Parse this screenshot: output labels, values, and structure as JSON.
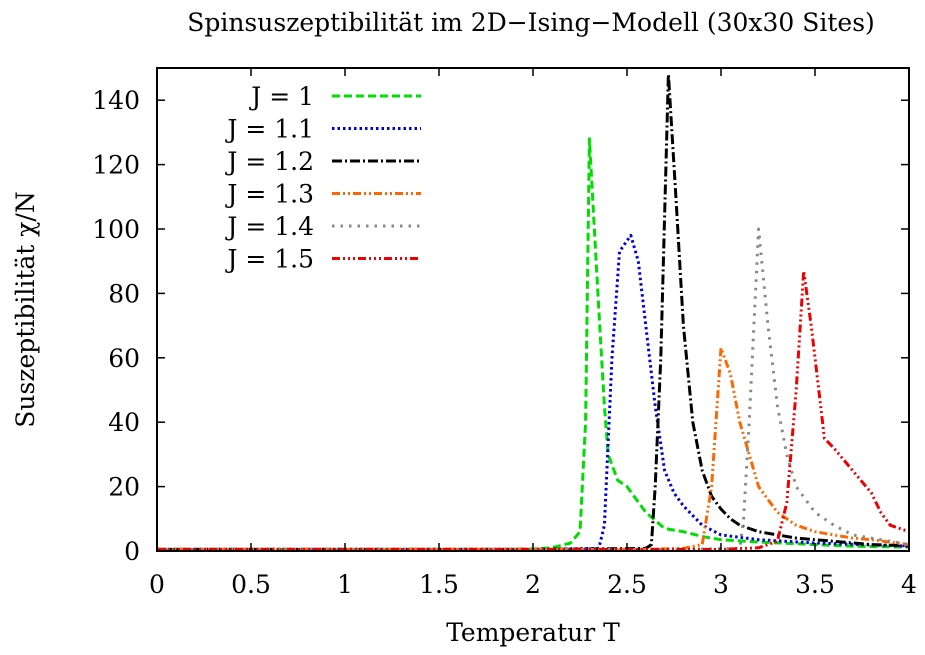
{
  "chart_data": {
    "type": "line",
    "title": "Spinsuszeptibilität im 2D−Ising−Modell (30x30 Sites)",
    "xlabel": "Temperatur T",
    "ylabel": "Suszeptibilität χ/N",
    "xlim": [
      0,
      4
    ],
    "ylim": [
      0,
      150
    ],
    "xticks": [
      "0",
      "0.5",
      "1",
      "1.5",
      "2",
      "2.5",
      "3",
      "3.5",
      "4"
    ],
    "yticks": [
      "0",
      "20",
      "40",
      "60",
      "80",
      "100",
      "120",
      "140"
    ],
    "grid": false,
    "legend_position": "top-left",
    "series": [
      {
        "name": "J = 1",
        "color": "#00dd00",
        "dash": "short-dash",
        "points": [
          [
            0,
            0.5
          ],
          [
            1,
            0.5
          ],
          [
            1.8,
            0.5
          ],
          [
            2,
            0.6
          ],
          [
            2.1,
            1
          ],
          [
            2.2,
            2.5
          ],
          [
            2.25,
            6
          ],
          [
            2.28,
            40
          ],
          [
            2.3,
            128
          ],
          [
            2.35,
            75
          ],
          [
            2.38,
            45
          ],
          [
            2.4,
            30
          ],
          [
            2.45,
            22
          ],
          [
            2.5,
            20
          ],
          [
            2.6,
            12
          ],
          [
            2.7,
            7
          ],
          [
            2.8,
            6
          ],
          [
            2.9,
            4.5
          ],
          [
            3,
            3.5
          ],
          [
            3.2,
            2.8
          ],
          [
            3.5,
            2
          ],
          [
            3.7,
            1.5
          ],
          [
            4,
            1.2
          ]
        ]
      },
      {
        "name": "J = 1.1",
        "color": "#0000dd",
        "dash": "dotted",
        "points": [
          [
            0,
            0.5
          ],
          [
            1,
            0.5
          ],
          [
            2,
            0.5
          ],
          [
            2.35,
            0.8
          ],
          [
            2.38,
            8
          ],
          [
            2.42,
            60
          ],
          [
            2.46,
            93
          ],
          [
            2.52,
            98
          ],
          [
            2.56,
            90
          ],
          [
            2.6,
            70
          ],
          [
            2.65,
            45
          ],
          [
            2.7,
            25
          ],
          [
            2.75,
            18
          ],
          [
            2.8,
            14
          ],
          [
            2.85,
            11
          ],
          [
            2.9,
            8
          ],
          [
            3,
            5
          ],
          [
            3.2,
            3.5
          ],
          [
            3.5,
            2.5
          ],
          [
            4,
            1.5
          ]
        ]
      },
      {
        "name": "J = 1.2",
        "color": "#000000",
        "dash": "dash-dot",
        "points": [
          [
            0,
            0.5
          ],
          [
            1,
            0.5
          ],
          [
            2,
            0.5
          ],
          [
            2.6,
            0.8
          ],
          [
            2.63,
            2
          ],
          [
            2.65,
            20
          ],
          [
            2.68,
            60
          ],
          [
            2.72,
            148
          ],
          [
            2.76,
            110
          ],
          [
            2.8,
            70
          ],
          [
            2.85,
            40
          ],
          [
            2.9,
            25
          ],
          [
            2.95,
            17
          ],
          [
            3,
            13
          ],
          [
            3.05,
            10
          ],
          [
            3.1,
            8
          ],
          [
            3.2,
            6
          ],
          [
            3.4,
            4
          ],
          [
            3.6,
            3
          ],
          [
            3.8,
            2
          ],
          [
            4,
            1.6
          ]
        ]
      },
      {
        "name": "J = 1.3",
        "color": "#ff6600",
        "dash": "dash-dot-dot",
        "points": [
          [
            0,
            0.5
          ],
          [
            1,
            0.5
          ],
          [
            2,
            0.5
          ],
          [
            2.6,
            0.5
          ],
          [
            2.8,
            0.8
          ],
          [
            2.9,
            2
          ],
          [
            2.95,
            20
          ],
          [
            3,
            63
          ],
          [
            3.05,
            55
          ],
          [
            3.1,
            40
          ],
          [
            3.15,
            30
          ],
          [
            3.2,
            20
          ],
          [
            3.3,
            12
          ],
          [
            3.4,
            8
          ],
          [
            3.5,
            6
          ],
          [
            3.6,
            5
          ],
          [
            3.7,
            4
          ],
          [
            3.8,
            3.5
          ],
          [
            4,
            2
          ]
        ]
      },
      {
        "name": "J = 1.4",
        "color": "#888888",
        "dash": "sparse-dot",
        "points": [
          [
            0,
            0.5
          ],
          [
            1,
            0.5
          ],
          [
            2,
            0.5
          ],
          [
            2.8,
            0.5
          ],
          [
            3.1,
            0.8
          ],
          [
            3.12,
            10
          ],
          [
            3.15,
            40
          ],
          [
            3.2,
            100
          ],
          [
            3.25,
            70
          ],
          [
            3.3,
            45
          ],
          [
            3.35,
            30
          ],
          [
            3.4,
            20
          ],
          [
            3.5,
            12
          ],
          [
            3.6,
            8
          ],
          [
            3.7,
            5
          ],
          [
            3.8,
            4
          ],
          [
            3.9,
            3
          ],
          [
            4,
            2
          ]
        ]
      },
      {
        "name": "J = 1.5",
        "color": "#ee0000",
        "dash": "dash-dot-dot-dot",
        "points": [
          [
            0,
            0.5
          ],
          [
            1,
            0.5
          ],
          [
            2,
            0.5
          ],
          [
            3,
            0.5
          ],
          [
            3.2,
            1
          ],
          [
            3.3,
            3
          ],
          [
            3.35,
            15
          ],
          [
            3.4,
            50
          ],
          [
            3.44,
            87
          ],
          [
            3.48,
            70
          ],
          [
            3.52,
            50
          ],
          [
            3.55,
            35
          ],
          [
            3.6,
            32
          ],
          [
            3.7,
            25
          ],
          [
            3.8,
            18
          ],
          [
            3.85,
            12
          ],
          [
            3.9,
            8
          ],
          [
            4,
            6
          ]
        ]
      }
    ]
  }
}
